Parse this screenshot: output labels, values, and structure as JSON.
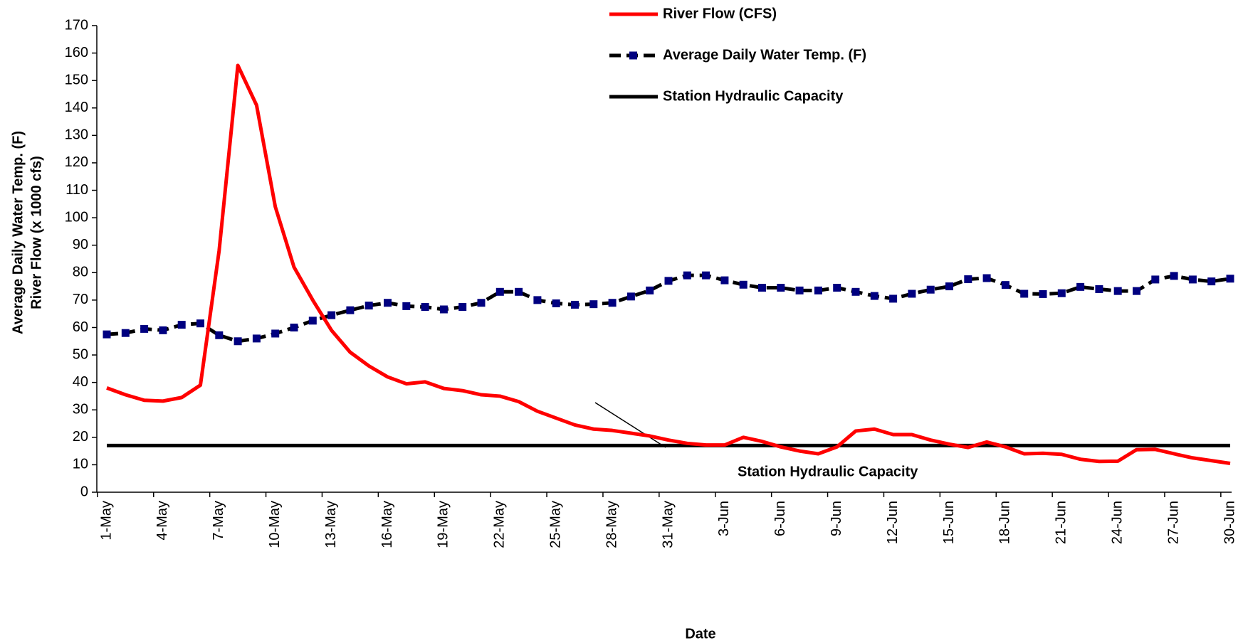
{
  "chart_data": {
    "type": "line",
    "categories": [
      "1-May",
      null,
      null,
      "4-May",
      null,
      null,
      "7-May",
      null,
      null,
      "10-May",
      null,
      null,
      "13-May",
      null,
      null,
      "16-May",
      null,
      null,
      "19-May",
      null,
      null,
      "22-May",
      null,
      null,
      "25-May",
      null,
      null,
      "28-May",
      null,
      null,
      "31-May",
      null,
      null,
      "3-Jun",
      null,
      null,
      "6-Jun",
      null,
      null,
      "9-Jun",
      null,
      null,
      "12-Jun",
      null,
      null,
      "15-Jun",
      null,
      null,
      "18-Jun",
      null,
      null,
      "21-Jun",
      null,
      null,
      "24-Jun",
      null,
      null,
      "27-Jun",
      null,
      null,
      "30-Jun"
    ],
    "series": [
      {
        "name": "River Flow (CFS)",
        "color": "#ff0000",
        "style": "solid",
        "values": [
          38,
          35.5,
          33.5,
          33.2,
          34.5,
          39,
          88,
          155.5,
          141,
          104,
          82,
          70,
          59,
          51,
          46,
          42,
          39.5,
          40.2,
          37.8,
          37,
          35.5,
          35,
          33,
          29.5,
          27,
          24.5,
          23,
          22.5,
          21.5,
          20.5,
          19,
          17.8,
          17.2,
          17.2,
          20,
          18.5,
          16.5,
          15,
          14,
          16.5,
          22.3,
          23,
          21,
          21,
          19,
          17.5,
          16.3,
          18.3,
          16.5,
          14,
          14.2,
          13.8,
          12,
          11.2,
          11.3,
          15.5,
          15.6,
          14,
          12.5,
          11.5,
          10.5
        ]
      },
      {
        "name": "Average Daily Water Temp. (F)",
        "color": "#000000",
        "marker_color": "#000080",
        "style": "dashed",
        "values": [
          57.5,
          58,
          59.5,
          59,
          61,
          61.5,
          57.2,
          55,
          56,
          57.8,
          60,
          62.5,
          64.5,
          66.3,
          68,
          69,
          67.8,
          67.5,
          66.6,
          67.5,
          69,
          73,
          73,
          70,
          68.8,
          68.3,
          68.5,
          69,
          71.3,
          73.5,
          77,
          79,
          79,
          77.2,
          75.6,
          74.5,
          74.5,
          73.5,
          73.5,
          74.5,
          73,
          71.5,
          70.5,
          72.3,
          73.8,
          75,
          77.6,
          78,
          75.5,
          72.3,
          72.2,
          72.5,
          74.8,
          74,
          73.3,
          73.3,
          77.5,
          78.8,
          77.5,
          76.8,
          77.8
        ]
      },
      {
        "name": "Station Hydraulic Capacity",
        "color": "#000000",
        "style": "solid",
        "values": [
          17,
          17,
          17,
          17,
          17,
          17,
          17,
          17,
          17,
          17,
          17,
          17,
          17,
          17,
          17,
          17,
          17,
          17,
          17,
          17,
          17,
          17,
          17,
          17,
          17,
          17,
          17,
          17,
          17,
          17,
          17,
          17,
          17,
          17,
          17,
          17,
          17,
          17,
          17,
          17,
          17,
          17,
          17,
          17,
          17,
          17,
          17,
          17,
          17,
          17,
          17,
          17,
          17,
          17,
          17,
          17,
          17,
          17,
          17,
          17,
          17
        ]
      }
    ],
    "annotation": "Station Hydraulic Capacity",
    "ylabel": [
      "Average Daily Water Temp. (F)",
      "River Flow (x 1000 cfs)"
    ],
    "xlabel": "Date",
    "ylim": [
      0,
      170
    ],
    "yticks": [
      0,
      10,
      20,
      30,
      40,
      50,
      60,
      70,
      80,
      90,
      100,
      110,
      120,
      130,
      140,
      150,
      160,
      170
    ],
    "grid": false,
    "legend": "top"
  }
}
